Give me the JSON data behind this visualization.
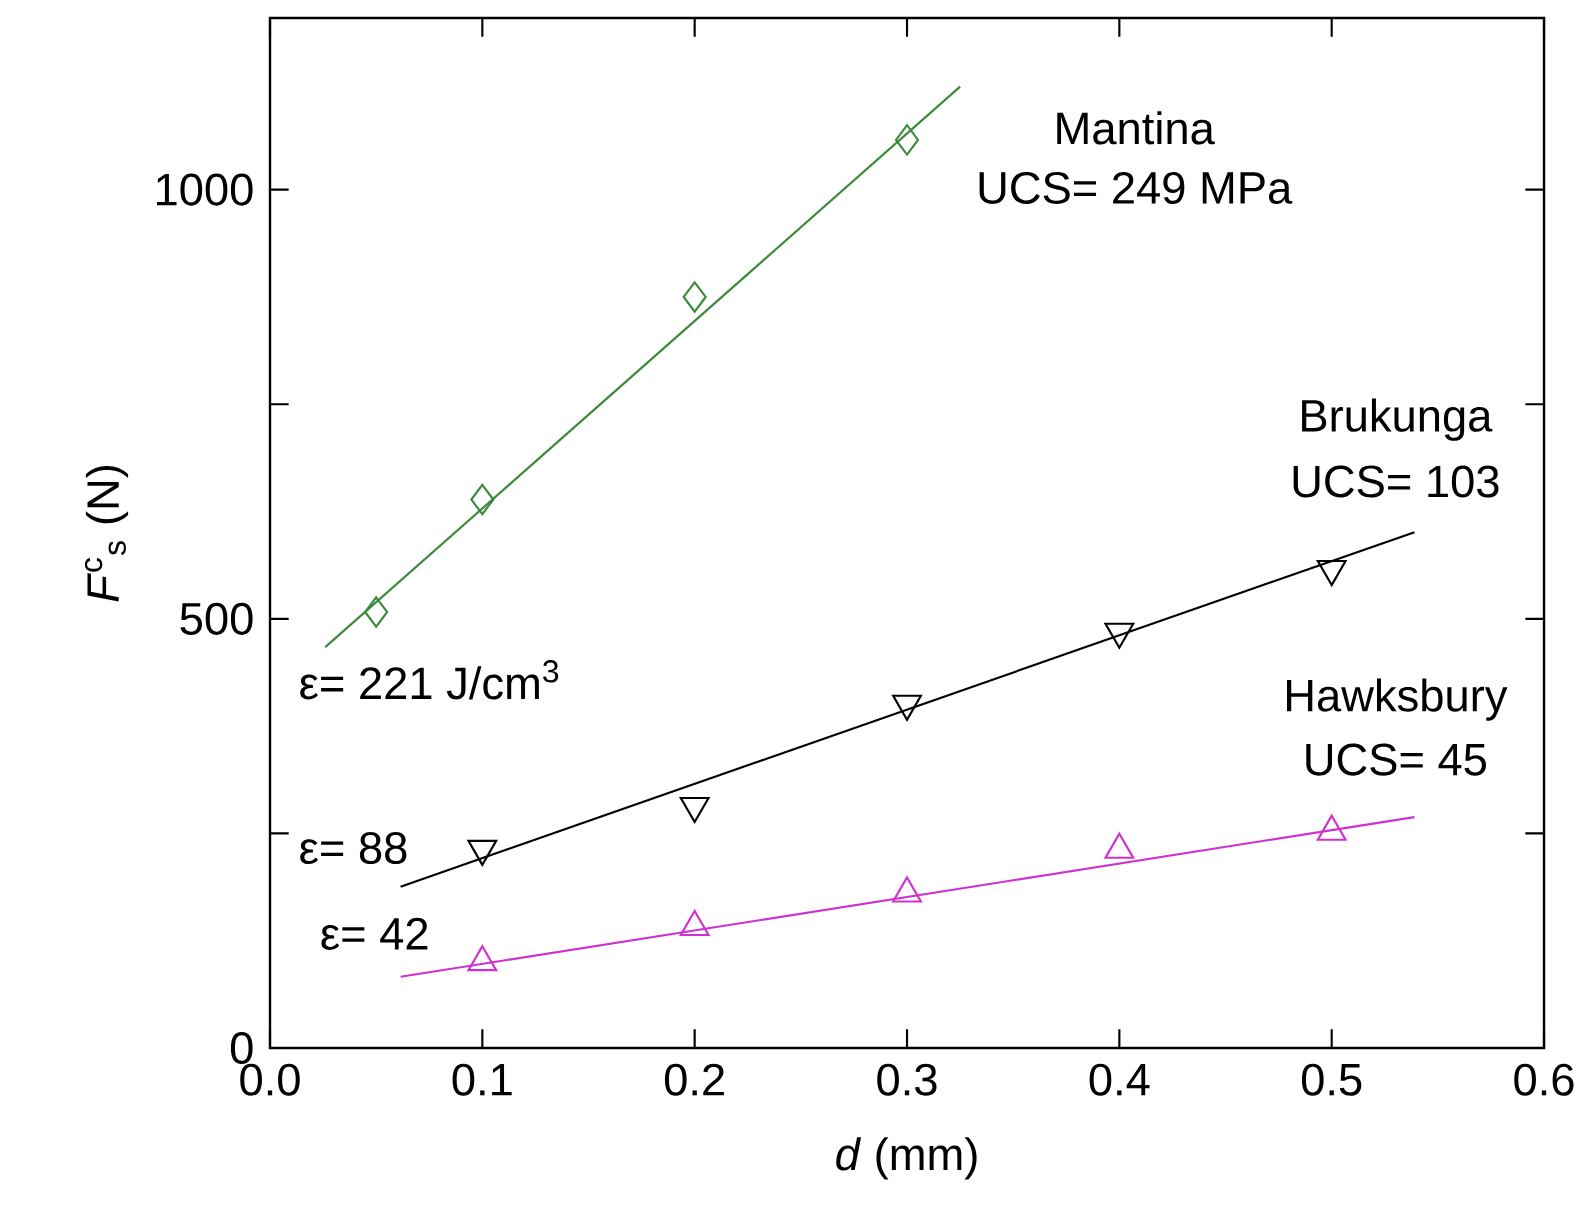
{
  "chart_data": {
    "type": "scatter",
    "xlabel": "*d* (mm)",
    "ylabel": "*F*$^{c}$$_{s}$ (N)",
    "xlim": [
      0,
      0.6
    ],
    "xticks": [
      {
        "value": 0,
        "label": "0.0"
      },
      0.1,
      0.2,
      0.3,
      0.4,
      0.5,
      0.6
    ],
    "ylim": [
      0,
      1200
    ],
    "yticks": [
      0,
      {
        "value": 250,
        "label": null
      },
      500,
      {
        "value": 750,
        "label": null
      },
      1000
    ],
    "grid": false,
    "legend": "right",
    "series": [
      {
        "name": "Mantina",
        "color": "#3a8a3a",
        "marker": "diamond",
        "x": [
          0.05,
          0.1,
          0.2,
          0.3
        ],
        "values": [
          508,
          639,
          875,
          1058
        ]
      },
      {
        "name": "Brukunga",
        "color": "#000000",
        "marker": "triangle-down",
        "x": [
          0.1,
          0.2,
          0.3,
          0.4,
          0.5
        ],
        "values": [
          232,
          282,
          401,
          485,
          558
        ]
      },
      {
        "name": "Hawksbury",
        "color": "#d030d0",
        "marker": "triangle",
        "x": [
          0.1,
          0.2,
          0.3,
          0.4,
          0.5
        ],
        "values": [
          100,
          141,
          180,
          231,
          252
        ]
      },
      {
        "type": "line",
        "color": "#3a8a3a",
        "marker": "none",
        "x": [
          0.026,
          0.325
        ],
        "values": [
          467,
          1120
        ]
      },
      {
        "type": "line",
        "color": "#000000",
        "marker": "none",
        "x": [
          0.0615,
          0.539
        ],
        "values": [
          188,
          601
        ]
      },
      {
        "type": "line",
        "color": "#d030d0",
        "marker": "none",
        "x": [
          0.0615,
          0.539
        ],
        "values": [
          83,
          269
        ]
      }
    ],
    "annotations": [
      "UCS= 249 MPa",
      "UCS= 103",
      "UCS= 45",
      "ε= 221 J/cm$^{3}$",
      "ε= 88",
      "ε= 42"
    ]
  }
}
